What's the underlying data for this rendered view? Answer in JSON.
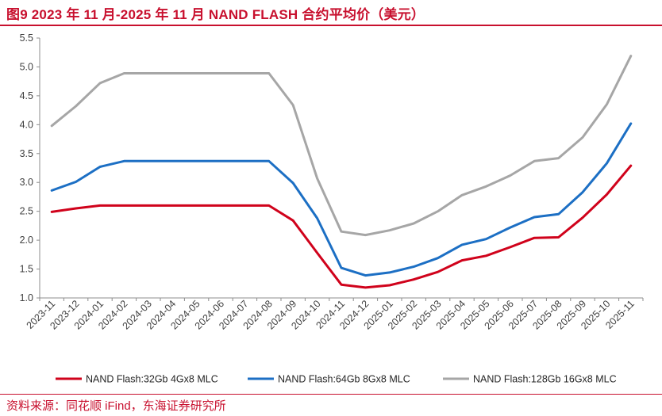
{
  "header": {
    "title": "图9  2023 年 11 月-2025 年 11 月 NAND FLASH 合约平均价（美元）"
  },
  "footer": {
    "source": "资料来源：同花顺 iFind，东海证券研究所"
  },
  "chart_data": {
    "type": "line",
    "title": "2023 年 11 月-2025 年 11 月 NAND FLASH 合约平均价（美元）",
    "xlabel": "",
    "ylabel": "",
    "ylim": [
      1.0,
      5.5
    ],
    "yticks": [
      "1.0",
      "1.5",
      "2.0",
      "2.5",
      "3.0",
      "3.5",
      "4.0",
      "4.5",
      "5.0",
      "5.5"
    ],
    "grid": false,
    "legend_position": "bottom",
    "categories": [
      "2023-11",
      "2023-12",
      "2024-01",
      "2024-02",
      "2024-03",
      "2024-04",
      "2024-05",
      "2024-06",
      "2024-07",
      "2024-08",
      "2024-09",
      "2024-10",
      "2024-11",
      "2024-12",
      "2025-01",
      "2025-02",
      "2025-03",
      "2025-04",
      "2025-05",
      "2025-06",
      "2025-07",
      "2025-08",
      "2025-09",
      "2025-10",
      "2025-11"
    ],
    "series": [
      {
        "name": "NAND Flash:32Gb 4Gx8 MLC",
        "color": "#d0021b",
        "values": [
          2.49,
          2.55,
          2.6,
          2.6,
          2.6,
          2.6,
          2.6,
          2.6,
          2.6,
          2.6,
          2.34,
          1.78,
          1.23,
          1.18,
          1.22,
          1.32,
          1.45,
          1.65,
          1.73,
          1.88,
          2.04,
          2.05,
          2.39,
          2.79,
          3.29
        ]
      },
      {
        "name": "NAND Flash:64Gb 8Gx8 MLC",
        "color": "#1c6fc4",
        "values": [
          2.86,
          3.01,
          3.27,
          3.37,
          3.37,
          3.37,
          3.37,
          3.37,
          3.37,
          3.37,
          2.99,
          2.38,
          1.52,
          1.39,
          1.44,
          1.54,
          1.69,
          1.92,
          2.02,
          2.22,
          2.4,
          2.45,
          2.83,
          3.33,
          4.02
        ]
      },
      {
        "name": "NAND Flash:128Gb 16Gx8 MLC",
        "color": "#a6a6a6",
        "values": [
          3.98,
          4.32,
          4.72,
          4.89,
          4.89,
          4.89,
          4.89,
          4.89,
          4.89,
          4.89,
          4.34,
          3.07,
          2.15,
          2.09,
          2.17,
          2.29,
          2.5,
          2.78,
          2.93,
          3.12,
          3.37,
          3.42,
          3.78,
          4.35,
          5.19
        ]
      }
    ]
  }
}
